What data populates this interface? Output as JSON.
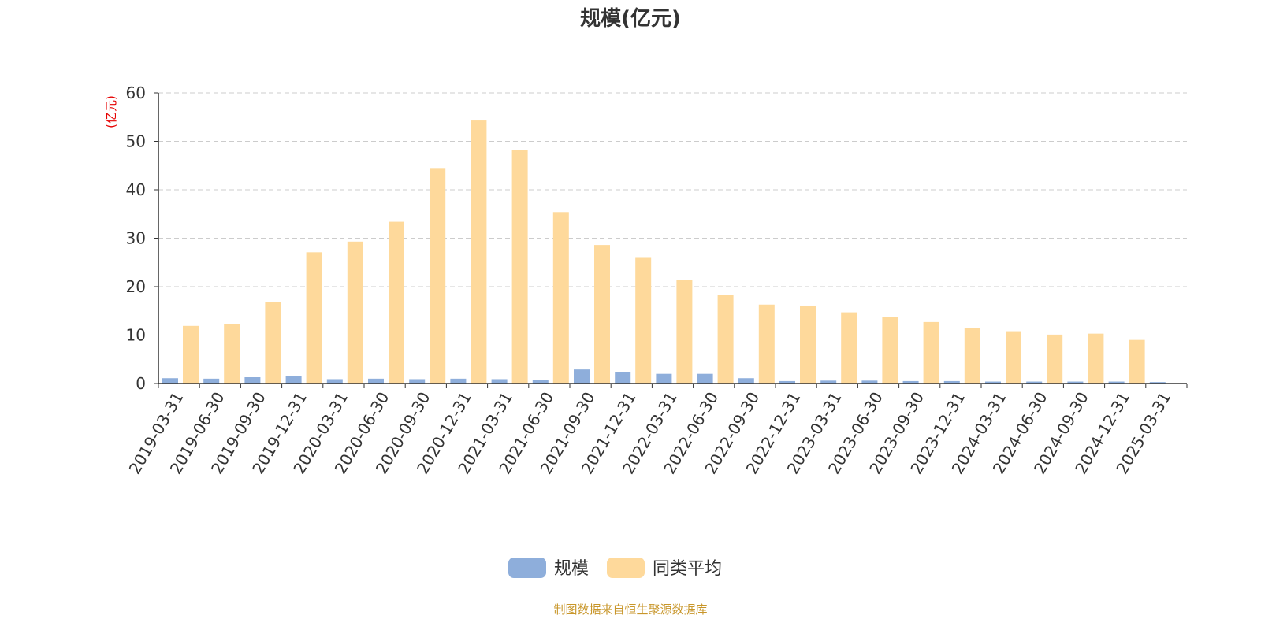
{
  "chart_data": {
    "type": "bar",
    "title": "规模(亿元)",
    "ylabel": "(亿元)",
    "xlabel": "",
    "ylim": [
      0,
      60
    ],
    "yticks": [
      0,
      10,
      20,
      30,
      40,
      50,
      60
    ],
    "grid": true,
    "legend_position": "bottom-center",
    "categories": [
      "2019-03-31",
      "2019-06-30",
      "2019-09-30",
      "2019-12-31",
      "2020-03-31",
      "2020-06-30",
      "2020-09-30",
      "2020-12-31",
      "2021-03-31",
      "2021-06-30",
      "2021-09-30",
      "2021-12-31",
      "2022-03-31",
      "2022-06-30",
      "2022-09-30",
      "2022-12-31",
      "2023-03-31",
      "2023-06-30",
      "2023-09-30",
      "2023-12-31",
      "2024-03-31",
      "2024-06-30",
      "2024-09-30",
      "2024-12-31",
      "2025-03-31"
    ],
    "series": [
      {
        "name": "规模",
        "color": "#8eaedb",
        "values": [
          1.1,
          1.0,
          1.3,
          1.5,
          0.9,
          1.0,
          0.9,
          1.0,
          0.9,
          0.7,
          2.9,
          2.3,
          2.0,
          2.0,
          1.1,
          0.5,
          0.6,
          0.6,
          0.5,
          0.5,
          0.4,
          0.4,
          0.4,
          0.4,
          0.3
        ]
      },
      {
        "name": "同类平均",
        "color": "#fed99b",
        "values": [
          11.9,
          12.3,
          16.8,
          27.1,
          29.3,
          33.4,
          44.5,
          54.3,
          48.2,
          35.4,
          28.6,
          26.1,
          21.4,
          18.3,
          16.3,
          16.1,
          14.7,
          13.7,
          12.7,
          11.5,
          10.8,
          10.1,
          10.3,
          9.0,
          null
        ]
      }
    ]
  },
  "footer": "制图数据来自恒生聚源数据库"
}
